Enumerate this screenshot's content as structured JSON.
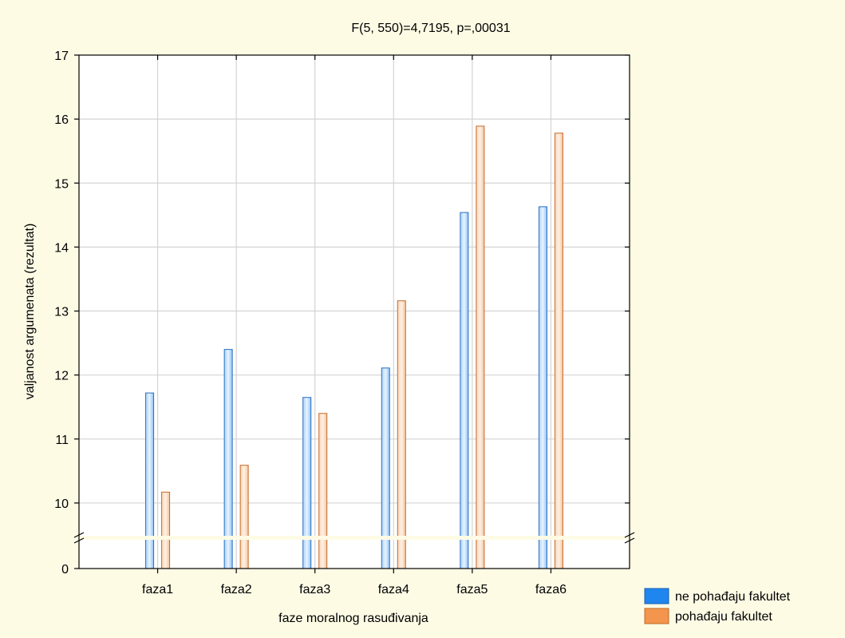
{
  "chart_data": {
    "type": "bar",
    "title": "F(5, 550)=4,7195, p=,00031",
    "xlabel": "faze moralnog rasuđivanja",
    "ylabel": "valjanost argumenata (rezultat)",
    "categories": [
      "faza1",
      "faza2",
      "faza3",
      "faza4",
      "faza5",
      "faza6"
    ],
    "series": [
      {
        "name": "ne pohađaju fakultet",
        "values": [
          11.72,
          12.4,
          11.65,
          12.11,
          14.54,
          14.63
        ],
        "color": "#1f86f0"
      },
      {
        "name": "pohađaju fakultet",
        "values": [
          10.17,
          10.59,
          11.4,
          13.16,
          15.89,
          15.78
        ],
        "color": "#f4954d"
      }
    ],
    "yticks_upper": [
      "10",
      "11",
      "12",
      "13",
      "14",
      "15",
      "16",
      "17"
    ],
    "ytick_lower": "0",
    "ylim_upper": [
      9.5,
      17
    ],
    "ylim_lower": [
      0,
      0.5
    ],
    "axis_break": true,
    "grid": true,
    "legend_position": "bottom-right",
    "colors": {
      "background": "#fefbe5",
      "plot_background": "#ffffff",
      "grid": "#d4d4d4"
    }
  }
}
